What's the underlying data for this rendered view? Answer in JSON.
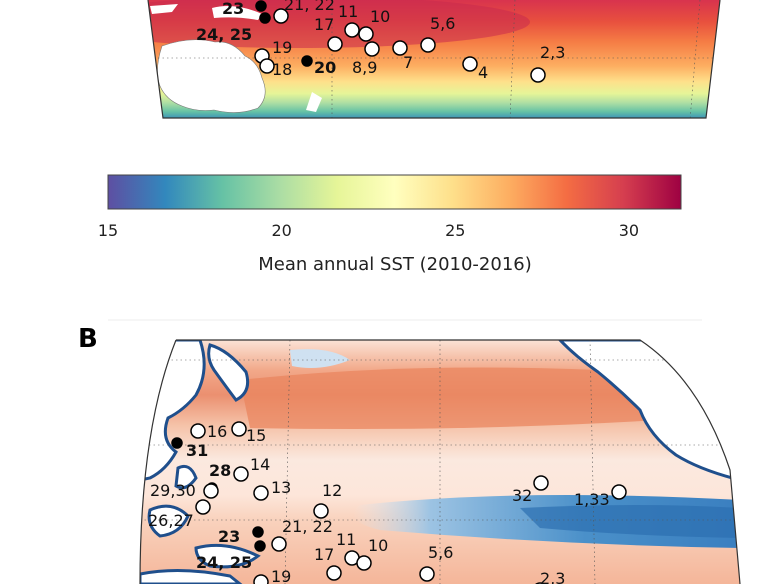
{
  "panel_b_label": "B",
  "colorbar": {
    "title": "Mean annual SST (2010-2016)",
    "ticks": [
      "15",
      "20",
      "25",
      "30"
    ],
    "tick_values": [
      15,
      20,
      25,
      30
    ],
    "range": [
      15,
      31.5
    ],
    "colormap": [
      "#5e4fa2",
      "#3288bd",
      "#66c2a5",
      "#abdda4",
      "#e6f598",
      "#ffffbf",
      "#fee08b",
      "#fdae61",
      "#f46d43",
      "#d53e4f",
      "#9e0142"
    ]
  },
  "panel_a_sites": [
    {
      "label": "23",
      "bold": true,
      "filled": true
    },
    {
      "label": "21, 22",
      "bold": false,
      "filled": false
    },
    {
      "label": "11",
      "bold": false,
      "filled": false
    },
    {
      "label": "10",
      "bold": false,
      "filled": false
    },
    {
      "label": "17",
      "bold": false,
      "filled": false
    },
    {
      "label": "5,6",
      "bold": false,
      "filled": false
    },
    {
      "label": "24, 25",
      "bold": true,
      "filled": true
    },
    {
      "label": "19",
      "bold": false,
      "filled": false
    },
    {
      "label": "18",
      "bold": false,
      "filled": false
    },
    {
      "label": "20",
      "bold": true,
      "filled": true
    },
    {
      "label": "8,9",
      "bold": false,
      "filled": false
    },
    {
      "label": "7",
      "bold": false,
      "filled": false
    },
    {
      "label": "4",
      "bold": false,
      "filled": false
    },
    {
      "label": "2,3",
      "bold": false,
      "filled": false
    }
  ],
  "panel_b_sites": [
    {
      "label": "16",
      "bold": false,
      "filled": false
    },
    {
      "label": "15",
      "bold": false,
      "filled": false
    },
    {
      "label": "31",
      "bold": true,
      "filled": true
    },
    {
      "label": "28",
      "bold": true,
      "filled": true
    },
    {
      "label": "14",
      "bold": false,
      "filled": false
    },
    {
      "label": "29,30",
      "bold": false,
      "filled": false
    },
    {
      "label": "13",
      "bold": false,
      "filled": false
    },
    {
      "label": "12",
      "bold": false,
      "filled": false
    },
    {
      "label": "26,27",
      "bold": false,
      "filled": false
    },
    {
      "label": "32",
      "bold": false,
      "filled": false
    },
    {
      "label": "1,33",
      "bold": false,
      "filled": false
    },
    {
      "label": "23",
      "bold": true,
      "filled": true
    },
    {
      "label": "21, 22",
      "bold": false,
      "filled": false
    },
    {
      "label": "11",
      "bold": false,
      "filled": false
    },
    {
      "label": "10",
      "bold": false,
      "filled": false
    },
    {
      "label": "17",
      "bold": false,
      "filled": false
    },
    {
      "label": "5,6",
      "bold": false,
      "filled": false
    },
    {
      "label": "24, 25",
      "bold": true,
      "filled": true
    },
    {
      "label": "19",
      "bold": false,
      "filled": false
    },
    {
      "label": "2,3",
      "bold": false,
      "filled": false
    }
  ]
}
